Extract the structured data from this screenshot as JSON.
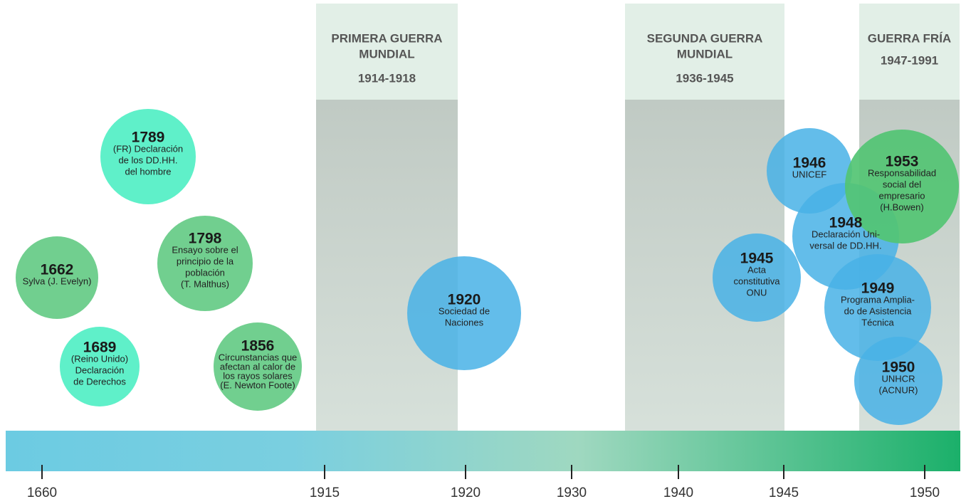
{
  "periods": [
    {
      "title": [
        "PRIMERA GUERRA",
        "MUNDIAL"
      ],
      "years": "1914-1918"
    },
    {
      "title": [
        "SEGUNDA GUERRA",
        "MUNDIAL"
      ],
      "years": "1936-1945"
    },
    {
      "title": [
        "GUERRA FRÍA"
      ],
      "years": "1947-1991"
    }
  ],
  "events": [
    {
      "year": "1662",
      "lines": [
        "Sylva (J. Evelyn)"
      ]
    },
    {
      "year": "1689",
      "lines": [
        "(Reino Unido)",
        "Declaración",
        "de Derechos"
      ]
    },
    {
      "year": "1789",
      "lines": [
        "(FR) Declaración",
        "de los DD.HH.",
        "del hombre"
      ]
    },
    {
      "year": "1798",
      "lines": [
        "Ensayo sobre el",
        "principio de la",
        "población",
        "(T. Malthus)"
      ]
    },
    {
      "year": "1856",
      "lines": [
        "Circunstancias que",
        "afectan al calor de",
        "los rayos solares",
        "(E. Newton Foote)"
      ]
    },
    {
      "year": "1920",
      "lines": [
        "Sociedad de",
        "Naciones"
      ]
    },
    {
      "year": "1945",
      "lines": [
        "Acta",
        "constitutiva",
        "ONU"
      ]
    },
    {
      "year": "1946",
      "lines": [
        "UNICEF"
      ]
    },
    {
      "year": "1948",
      "lines": [
        "Declaración Uni-",
        "versal de DD.HH."
      ]
    },
    {
      "year": "1949",
      "lines": [
        "Programa Amplia-",
        "do de Asistencia",
        "Técnica"
      ]
    },
    {
      "year": "1953",
      "lines": [
        "Responsabilidad",
        "social del",
        "empresario",
        "(H.Bowen)"
      ]
    },
    {
      "year": "1950",
      "lines": [
        "UNHCR",
        "(ACNUR)"
      ]
    }
  ],
  "axis_labels": [
    "1660",
    "1915",
    "1920",
    "1930",
    "1940",
    "1945",
    "1950"
  ]
}
